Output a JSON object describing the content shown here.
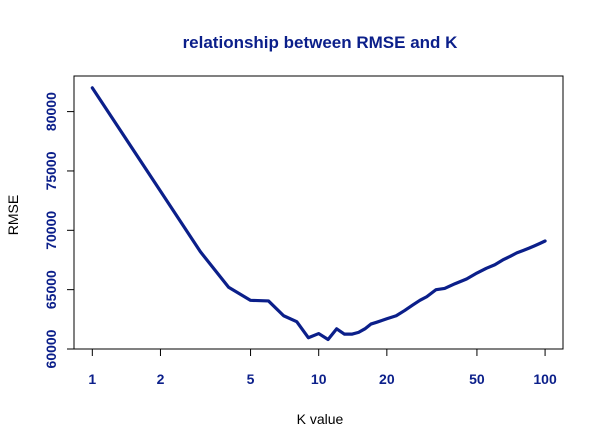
{
  "chart_data": {
    "type": "line",
    "title": "relationship between RMSE and K",
    "xlabel": "K value",
    "ylabel": "RMSE",
    "xscale": "log",
    "xlim": [
      0.83,
      120
    ],
    "ylim": [
      60000,
      83000
    ],
    "x_ticks": [
      1,
      2,
      5,
      10,
      20,
      50,
      100
    ],
    "y_ticks": [
      60000,
      65000,
      70000,
      75000,
      80000
    ],
    "grid": false,
    "line_color": "#0b1f8a",
    "series": [
      {
        "x": [
          1,
          2,
          3,
          4,
          5,
          6,
          7,
          8,
          9,
          10,
          11,
          12,
          13,
          14,
          15,
          16,
          17,
          18,
          19,
          20,
          22,
          24,
          26,
          28,
          30,
          33,
          36,
          40,
          45,
          50,
          55,
          60,
          65,
          70,
          75,
          80,
          85,
          90,
          95,
          100
        ],
        "values": [
          82000,
          73300,
          68200,
          65200,
          64100,
          64050,
          62800,
          62300,
          60950,
          61300,
          60800,
          61700,
          61250,
          61250,
          61400,
          61700,
          62100,
          62250,
          62400,
          62550,
          62800,
          63250,
          63700,
          64100,
          64400,
          65000,
          65100,
          65500,
          65900,
          66400,
          66800,
          67100,
          67500,
          67800,
          68100,
          68300,
          68500,
          68700,
          68900,
          69100
        ]
      }
    ]
  }
}
